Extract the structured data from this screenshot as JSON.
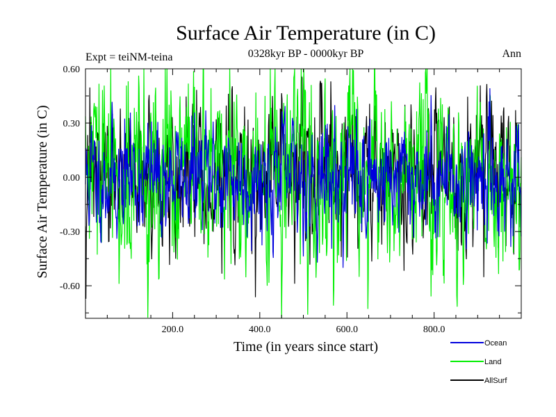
{
  "chart_data": {
    "type": "line",
    "title": "Surface Air Temperature (in C)",
    "subtitle_left": "Expt = teiNM-teina",
    "subtitle_center": "0328kyr BP - 0000kyr BP",
    "subtitle_right": "Ann",
    "xlabel": "Time (in years since start)",
    "ylabel": "Surface Air Temperature (in C)",
    "xlim": [
      0,
      1000
    ],
    "ylim": [
      -0.78,
      0.6
    ],
    "x_ticks": [
      200,
      400,
      600,
      800
    ],
    "x_tick_labels": [
      "200.0",
      "400.0",
      "600.0",
      "800.0"
    ],
    "y_ticks": [
      0.6,
      0.3,
      0.0,
      -0.3,
      -0.6
    ],
    "y_tick_labels": [
      "0.60",
      "0.30",
      "0.00",
      "-0.30",
      "-0.60"
    ],
    "series": [
      {
        "name": "Ocean",
        "color": "#0000dd",
        "std": 0.14,
        "seed": 11
      },
      {
        "name": "Land",
        "color": "#00ee00",
        "std": 0.24,
        "seed": 29
      },
      {
        "name": "AllSurf",
        "color": "#000000",
        "std": 0.17,
        "seed": 47
      }
    ],
    "legend": [
      {
        "name": "Ocean",
        "color": "#0000dd"
      },
      {
        "name": "Land",
        "color": "#00ee00"
      },
      {
        "name": "AllSurf",
        "color": "#000000"
      }
    ],
    "legend_position": "bottom-right"
  }
}
